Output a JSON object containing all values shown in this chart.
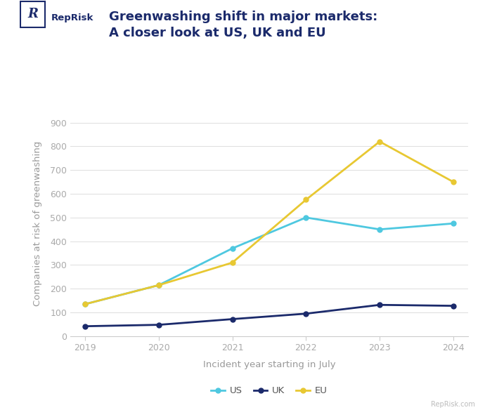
{
  "years": [
    2019,
    2020,
    2021,
    2022,
    2023,
    2024
  ],
  "US": [
    135,
    215,
    370,
    500,
    450,
    475
  ],
  "UK": [
    42,
    48,
    72,
    95,
    132,
    128
  ],
  "EU": [
    135,
    215,
    310,
    575,
    820,
    650
  ],
  "US_color": "#4EC8E0",
  "UK_color": "#1B2A6B",
  "EU_color": "#E8C832",
  "title_line1": "Greenwashing shift in major markets:",
  "title_line2": "A closer look at US, UK and EU",
  "xlabel": "Incident year starting in July",
  "ylabel": "Companies at risk of greenwashing",
  "ylim": [
    0,
    950
  ],
  "yticks": [
    0,
    100,
    200,
    300,
    400,
    500,
    600,
    700,
    800,
    900
  ],
  "background_color": "#FFFFFF",
  "grid_color": "#DDDDDD",
  "title_color": "#1B2A6B",
  "tick_color": "#AAAAAA",
  "label_color": "#999999",
  "reprisk_text": "RepRisk",
  "reprisk_color": "#1B2A6B",
  "watermark": "RepRisk.com",
  "legend_labels": [
    "US",
    "UK",
    "EU"
  ]
}
